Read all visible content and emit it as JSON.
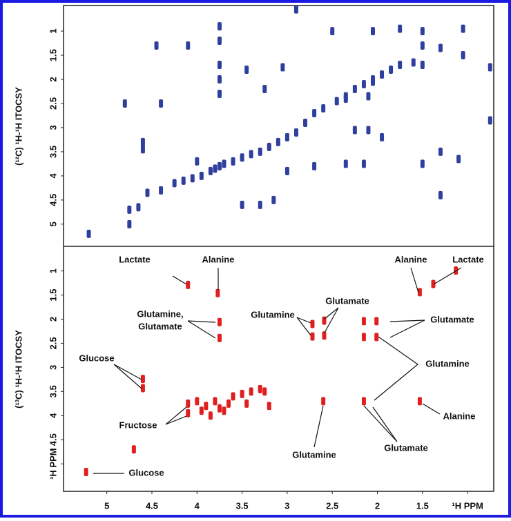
{
  "chart_data": [
    {
      "type": "scatter",
      "ylabel": "(¹²C) ¹H-¹H ITOCSY",
      "xlim": [
        5.48,
        0.71
      ],
      "ylim": [
        0.47,
        5.46
      ],
      "yticks": [
        1,
        1.5,
        2,
        2.5,
        3,
        3.5,
        4,
        4.5,
        5
      ],
      "series": [
        {
          "color": "#2f3f9e",
          "x": [
            4.65,
            4.55,
            4.4,
            4.25,
            4.15,
            4.05,
            3.95,
            3.85,
            3.8,
            3.75,
            3.7,
            3.6,
            3.5,
            3.4,
            3.3,
            3.2,
            3.1,
            3.0,
            2.9,
            2.8,
            2.7,
            2.6,
            2.45,
            2.35,
            2.25,
            2.15,
            2.05,
            1.95,
            1.85,
            1.75,
            1.6,
            4.45,
            4.1,
            3.75,
            3.75,
            3.75,
            3.75,
            3.75,
            3.45,
            3.25,
            3.05,
            4.6,
            4.6,
            4.0,
            3.3,
            3.15,
            2.5,
            2.05,
            1.75,
            1.5,
            1.5,
            1.5,
            1.3,
            1.05,
            1.05,
            2.35,
            2.15,
            1.5,
            1.3,
            1.1,
            1.3,
            2.1,
            1.95,
            2.25,
            2.7,
            3.0,
            2.35,
            2.1,
            2.05,
            5.2,
            4.75,
            4.75,
            0.75,
            0.75,
            2.9,
            3.5,
            4.8,
            4.4
          ],
          "values": [
            4.65,
            4.35,
            4.3,
            4.15,
            4.1,
            4.05,
            4.0,
            3.9,
            3.85,
            3.8,
            3.75,
            3.7,
            3.62,
            3.55,
            3.5,
            3.4,
            3.3,
            3.2,
            3.1,
            2.9,
            2.7,
            2.6,
            2.45,
            2.35,
            2.2,
            2.1,
            2.0,
            1.9,
            1.8,
            1.7,
            1.65,
            1.3,
            1.3,
            0.9,
            1.2,
            1.7,
            2.0,
            2.3,
            1.8,
            2.2,
            1.75,
            3.3,
            3.45,
            3.7,
            4.6,
            4.5,
            1.0,
            1.0,
            0.95,
            1.0,
            1.3,
            1.7,
            1.35,
            0.95,
            1.5,
            3.75,
            3.75,
            3.75,
            3.5,
            3.65,
            4.4,
            3.05,
            3.2,
            3.05,
            3.8,
            3.9,
            2.4,
            2.35,
            2.05,
            5.2,
            4.7,
            5.0,
            2.85,
            1.75,
            0.55,
            4.6,
            2.5,
            2.5
          ]
        }
      ]
    },
    {
      "type": "scatter",
      "ylabel": "(¹³C) ¹H-¹H ITOCSY",
      "xlim": [
        5.48,
        0.71
      ],
      "ylim": [
        0.49,
        5.57
      ],
      "xticks": [
        5,
        4.5,
        4,
        3.5,
        3,
        2.5,
        2,
        1.5,
        {
          "value": 1,
          "label": "¹H PPM"
        }
      ],
      "yticks": [
        1,
        1.5,
        2,
        2.5,
        3,
        3.5,
        4,
        4.5,
        {
          "value": 5,
          "label": "¹H PPM"
        }
      ],
      "series": [
        {
          "color": "#e02020",
          "x": [
            4.1,
            3.77,
            3.75,
            3.75,
            4.6,
            4.6,
            5.23,
            2.72,
            2.72,
            2.59,
            2.59,
            2.15,
            2.15,
            2.01,
            2.01,
            2.6,
            2.15,
            1.53,
            1.38,
            1.53,
            1.13,
            4.1,
            4.1,
            4.0,
            3.95,
            3.9,
            3.85,
            3.8,
            3.75,
            3.7,
            3.65,
            3.6,
            3.5,
            3.45,
            3.4,
            3.3,
            3.25,
            3.2,
            4.7
          ],
          "values": [
            1.29,
            1.46,
            2.06,
            2.39,
            3.24,
            3.43,
            5.17,
            2.1,
            2.36,
            2.03,
            2.34,
            2.04,
            2.37,
            2.04,
            2.37,
            3.7,
            3.7,
            1.44,
            1.27,
            3.7,
            0.99,
            3.75,
            3.95,
            3.7,
            3.9,
            3.8,
            4.0,
            3.7,
            3.85,
            3.9,
            3.75,
            3.6,
            3.55,
            3.75,
            3.5,
            3.45,
            3.5,
            3.8,
            4.7
          ]
        }
      ],
      "annotations": [
        "Lactate",
        "Alanine",
        "Glutamine,",
        "Glutamate",
        "Glucose",
        "Fructose",
        "Glucose",
        "Alanine",
        "Lactate",
        "Glutamate",
        "Glutamine",
        "Glutamate",
        "Glutamine",
        "Alanine",
        "Glutamine",
        "Glutamate"
      ]
    }
  ]
}
